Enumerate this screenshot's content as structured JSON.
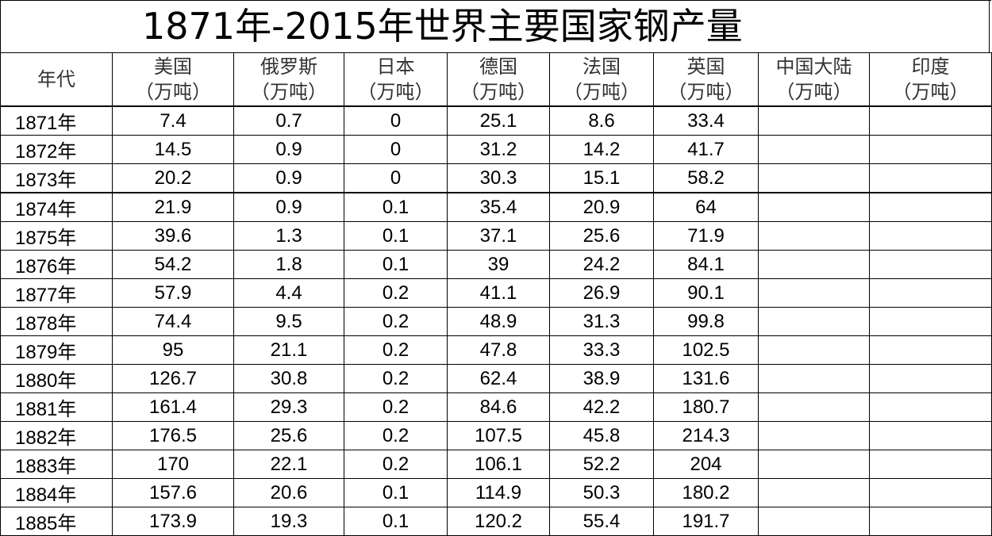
{
  "title": "1871年-2015年世界主要国家钢产量",
  "columns": [
    {
      "name": "年代",
      "unit": ""
    },
    {
      "name": "美国",
      "unit": "（万吨）"
    },
    {
      "name": "俄罗斯",
      "unit": "（万吨）"
    },
    {
      "name": "日本",
      "unit": "（万吨）"
    },
    {
      "name": "德国",
      "unit": "（万吨）"
    },
    {
      "name": "法国",
      "unit": "（万吨）"
    },
    {
      "name": "英国",
      "unit": "（万吨）"
    },
    {
      "name": "中国大陆",
      "unit": "（万吨）"
    },
    {
      "name": "印度",
      "unit": "（万吨）"
    }
  ],
  "rows": [
    [
      "1871年",
      "7.4",
      "0.7",
      "0",
      "25.1",
      "8.6",
      "33.4",
      "",
      ""
    ],
    [
      "1872年",
      "14.5",
      "0.9",
      "0",
      "31.2",
      "14.2",
      "41.7",
      "",
      ""
    ],
    [
      "1873年",
      "20.2",
      "0.9",
      "0",
      "30.3",
      "15.1",
      "58.2",
      "",
      ""
    ],
    [
      "1874年",
      "21.9",
      "0.9",
      "0.1",
      "35.4",
      "20.9",
      "64",
      "",
      ""
    ],
    [
      "1875年",
      "39.6",
      "1.3",
      "0.1",
      "37.1",
      "25.6",
      "71.9",
      "",
      ""
    ],
    [
      "1876年",
      "54.2",
      "1.8",
      "0.1",
      "39",
      "24.2",
      "84.1",
      "",
      ""
    ],
    [
      "1877年",
      "57.9",
      "4.4",
      "0.2",
      "41.1",
      "26.9",
      "90.1",
      "",
      ""
    ],
    [
      "1878年",
      "74.4",
      "9.5",
      "0.2",
      "48.9",
      "31.3",
      "99.8",
      "",
      ""
    ],
    [
      "1879年",
      "95",
      "21.1",
      "0.2",
      "47.8",
      "33.3",
      "102.5",
      "",
      ""
    ],
    [
      "1880年",
      "126.7",
      "30.8",
      "0.2",
      "62.4",
      "38.9",
      "131.6",
      "",
      ""
    ],
    [
      "1881年",
      "161.4",
      "29.3",
      "0.2",
      "84.6",
      "42.2",
      "180.7",
      "",
      ""
    ],
    [
      "1882年",
      "176.5",
      "25.6",
      "0.2",
      "107.5",
      "45.8",
      "214.3",
      "",
      ""
    ],
    [
      "1883年",
      "170",
      "22.1",
      "0.2",
      "106.1",
      "52.2",
      "204",
      "",
      ""
    ],
    [
      "1884年",
      "157.6",
      "20.6",
      "0.1",
      "114.9",
      "50.3",
      "180.2",
      "",
      ""
    ],
    [
      "1885年",
      "173.9",
      "19.3",
      "0.1",
      "120.2",
      "55.4",
      "191.7",
      "",
      ""
    ]
  ]
}
